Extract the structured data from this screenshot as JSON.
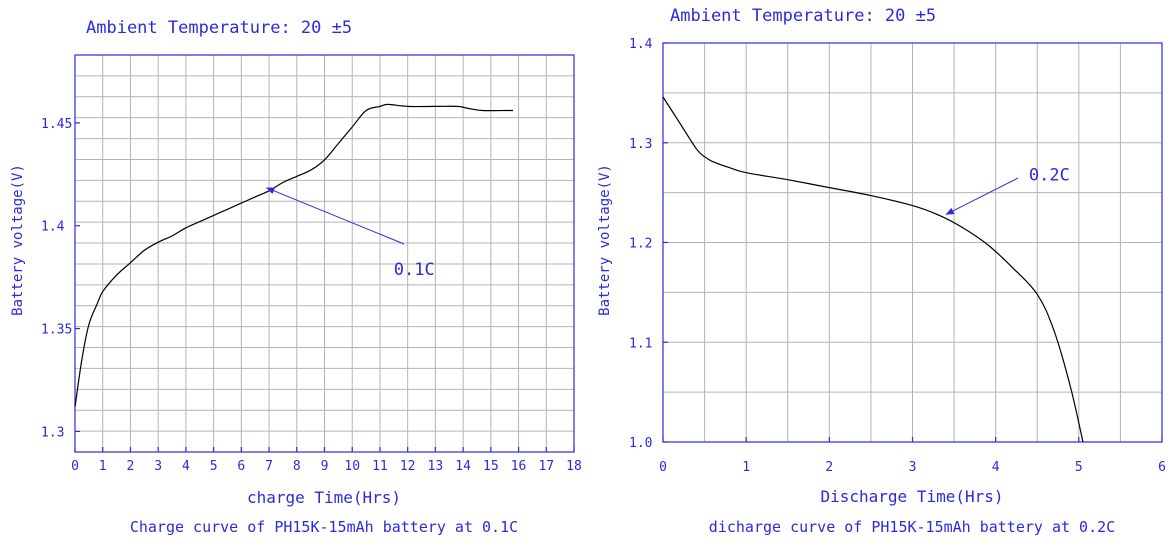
{
  "colors": {
    "frame": "#2a2ae0",
    "text": "#2a2ae0",
    "grid": "#b4b4b4",
    "curve": "#000000"
  },
  "chart_data": [
    {
      "type": "line",
      "title": "Ambient Temperature: 20  ±5",
      "xlabel": "charge Time(Hrs)",
      "ylabel": "Battery voltage(V)",
      "caption": "Charge curve of PH15K-15mAh battery at 0.1C",
      "xlim": [
        0,
        18
      ],
      "ylim": [
        1.29,
        1.483
      ],
      "xticks": [
        0,
        1,
        2,
        3,
        4,
        5,
        6,
        7,
        8,
        9,
        10,
        11,
        12,
        13,
        14,
        15,
        16,
        17,
        18
      ],
      "xtick_labels": [
        "0",
        "1",
        "2",
        "3",
        "4",
        "5",
        "6",
        "7",
        "8",
        "9",
        "10",
        "11",
        "12",
        "13",
        "14",
        "15",
        "16",
        "17",
        "18"
      ],
      "yticks": [
        1.3,
        1.35,
        1.4,
        1.45
      ],
      "ytick_labels": [
        "1.3",
        "1.35",
        "1.4",
        "1.45"
      ],
      "grid": true,
      "series": [
        {
          "name": "0.1C",
          "x": [
            0,
            0.25,
            0.5,
            0.8,
            1.0,
            1.5,
            2.0,
            2.5,
            3.0,
            3.5,
            4.0,
            4.5,
            5.0,
            5.5,
            6.0,
            6.5,
            7.0,
            7.5,
            8.0,
            8.5,
            9.0,
            9.5,
            10.0,
            10.5,
            11.0,
            11.3,
            12.0,
            13.0,
            13.8,
            14.2,
            14.7,
            15.5,
            15.8
          ],
          "y": [
            1.312,
            1.335,
            1.352,
            1.362,
            1.368,
            1.376,
            1.382,
            1.388,
            1.392,
            1.395,
            1.399,
            1.402,
            1.405,
            1.408,
            1.411,
            1.414,
            1.417,
            1.421,
            1.424,
            1.427,
            1.432,
            1.44,
            1.448,
            1.456,
            1.458,
            1.459,
            1.458,
            1.458,
            1.458,
            1.457,
            1.456,
            1.456,
            1.456
          ]
        }
      ],
      "annotations": [
        {
          "text": "0.1C",
          "target": [
            6.9,
            1.4185
          ],
          "text_at": [
            11.5,
            1.376
          ]
        }
      ]
    },
    {
      "type": "line",
      "title": "Ambient Temperature: 20  ±5",
      "xlabel": "Discharge Time(Hrs)",
      "ylabel": "Battery voltage(V)",
      "caption": "dicharge curve of PH15K-15mAh battery at 0.2C",
      "xlim": [
        0,
        6
      ],
      "ylim": [
        1.0,
        1.4
      ],
      "xticks": [
        0,
        1,
        2,
        3,
        4,
        5,
        6
      ],
      "xtick_labels": [
        "0",
        "1",
        "2",
        "3",
        "4",
        "5",
        "6"
      ],
      "yticks": [
        1.0,
        1.1,
        1.2,
        1.3,
        1.4
      ],
      "ytick_labels": [
        "1.0",
        "1.1",
        "1.2",
        "1.3",
        "1.4"
      ],
      "grid": true,
      "series": [
        {
          "name": "0.2C",
          "x": [
            0,
            0.2,
            0.4,
            0.5,
            0.6,
            0.8,
            1.0,
            1.5,
            2.0,
            2.5,
            3.0,
            3.3,
            3.6,
            3.9,
            4.2,
            4.5,
            4.7,
            4.9,
            5.05
          ],
          "y": [
            1.346,
            1.32,
            1.294,
            1.286,
            1.281,
            1.275,
            1.27,
            1.263,
            1.255,
            1.247,
            1.237,
            1.228,
            1.215,
            1.198,
            1.175,
            1.148,
            1.112,
            1.055,
            1.0
          ]
        }
      ],
      "annotations": [
        {
          "text": "0.2C",
          "target": [
            3.4,
            1.228
          ],
          "text_at": [
            4.4,
            1.262
          ]
        }
      ]
    }
  ]
}
